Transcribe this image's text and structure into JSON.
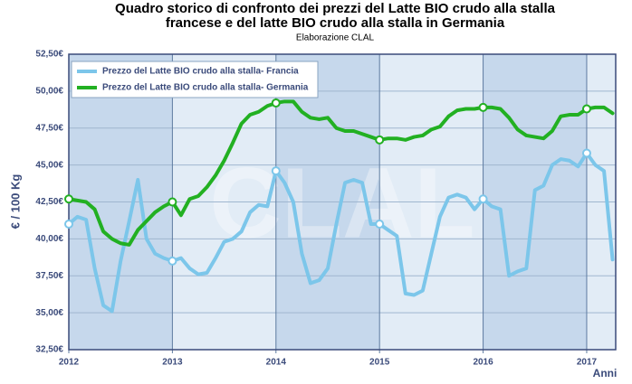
{
  "chart_data": {
    "type": "line",
    "title": [
      "Quadro storico di confronto dei prezzi del Latte BIO crudo alla stalla",
      "francese e del latte BIO crudo alla stalla in Germania"
    ],
    "subtitle": "Elaborazione CLAL",
    "y_label": "€ / 100 Kg",
    "x_label": "Anni",
    "watermark": "CLAL",
    "legend": "upper left",
    "grid": true,
    "x": [
      2012,
      2012.083,
      2012.167,
      2012.25,
      2012.333,
      2012.417,
      2012.5,
      2012.583,
      2012.667,
      2012.75,
      2012.833,
      2012.917,
      2013,
      2013.083,
      2013.167,
      2013.25,
      2013.333,
      2013.417,
      2013.5,
      2013.583,
      2013.667,
      2013.75,
      2013.833,
      2013.917,
      2014,
      2014.083,
      2014.167,
      2014.25,
      2014.333,
      2014.417,
      2014.5,
      2014.583,
      2014.667,
      2014.75,
      2014.833,
      2014.917,
      2015,
      2015.083,
      2015.167,
      2015.25,
      2015.333,
      2015.417,
      2015.5,
      2015.583,
      2015.667,
      2015.75,
      2015.833,
      2015.917,
      2016,
      2016.083,
      2016.167,
      2016.25,
      2016.333,
      2016.417,
      2016.5,
      2016.583,
      2016.667,
      2016.75,
      2016.833,
      2016.917,
      2017,
      2017.083,
      2017.167,
      2017.25
    ],
    "series": [
      {
        "name": "Prezzo del Latte BIO crudo alla stalla- Francia",
        "color": "#7cc6ea",
        "values": [
          41.0,
          41.5,
          41.3,
          38.0,
          35.5,
          35.1,
          38.5,
          41.2,
          44.0,
          40.0,
          39.0,
          38.7,
          38.5,
          38.7,
          38.0,
          37.6,
          37.7,
          38.7,
          39.8,
          40.0,
          40.5,
          41.8,
          42.3,
          42.2,
          44.6,
          43.8,
          42.5,
          39.0,
          37.0,
          37.2,
          38.0,
          41.0,
          43.8,
          44.0,
          43.8,
          41.0,
          41.0,
          40.6,
          40.2,
          36.3,
          36.2,
          36.5,
          39.0,
          41.5,
          42.8,
          43.0,
          42.8,
          42.0,
          42.7,
          42.2,
          42.0,
          37.5,
          37.8,
          38.0,
          43.3,
          43.6,
          45.0,
          45.4,
          45.3,
          44.9,
          45.8,
          45.0,
          44.6,
          38.6
        ]
      },
      {
        "name": "Prezzo del Latte BIO crudo alla stalla- Germania",
        "color": "#22b022",
        "values": [
          42.7,
          42.6,
          42.5,
          42.0,
          40.5,
          40.0,
          39.7,
          39.6,
          40.6,
          41.2,
          41.8,
          42.2,
          42.5,
          41.6,
          42.7,
          42.9,
          43.5,
          44.3,
          45.3,
          46.5,
          47.8,
          48.4,
          48.6,
          49.0,
          49.2,
          49.3,
          49.3,
          48.6,
          48.2,
          48.1,
          48.2,
          47.5,
          47.3,
          47.3,
          47.1,
          46.9,
          46.7,
          46.8,
          46.8,
          46.7,
          46.9,
          47.0,
          47.4,
          47.6,
          48.3,
          48.7,
          48.8,
          48.8,
          48.9,
          48.9,
          48.8,
          48.2,
          47.4,
          47.0,
          46.9,
          46.8,
          47.3,
          48.3,
          48.4,
          48.4,
          48.8,
          48.9,
          48.9,
          48.5
        ]
      }
    ],
    "xlim": [
      2012,
      2017.28
    ],
    "xticks": [
      2012,
      2013,
      2014,
      2015,
      2016,
      2017
    ],
    "ylim": [
      32.5,
      52.5
    ],
    "yticks": [
      {
        "value": 32.5,
        "label": "32,50€"
      },
      {
        "value": 35,
        "label": "35,00€"
      },
      {
        "value": 37.5,
        "label": "37,50€"
      },
      {
        "value": 40,
        "label": "40,00€"
      },
      {
        "value": 42.5,
        "label": "42,50€"
      },
      {
        "value": 45,
        "label": "45,00€"
      },
      {
        "value": 47.5,
        "label": "47,50€"
      },
      {
        "value": 50,
        "label": "50,00€"
      },
      {
        "value": 52.5,
        "label": "52,50€"
      }
    ]
  }
}
